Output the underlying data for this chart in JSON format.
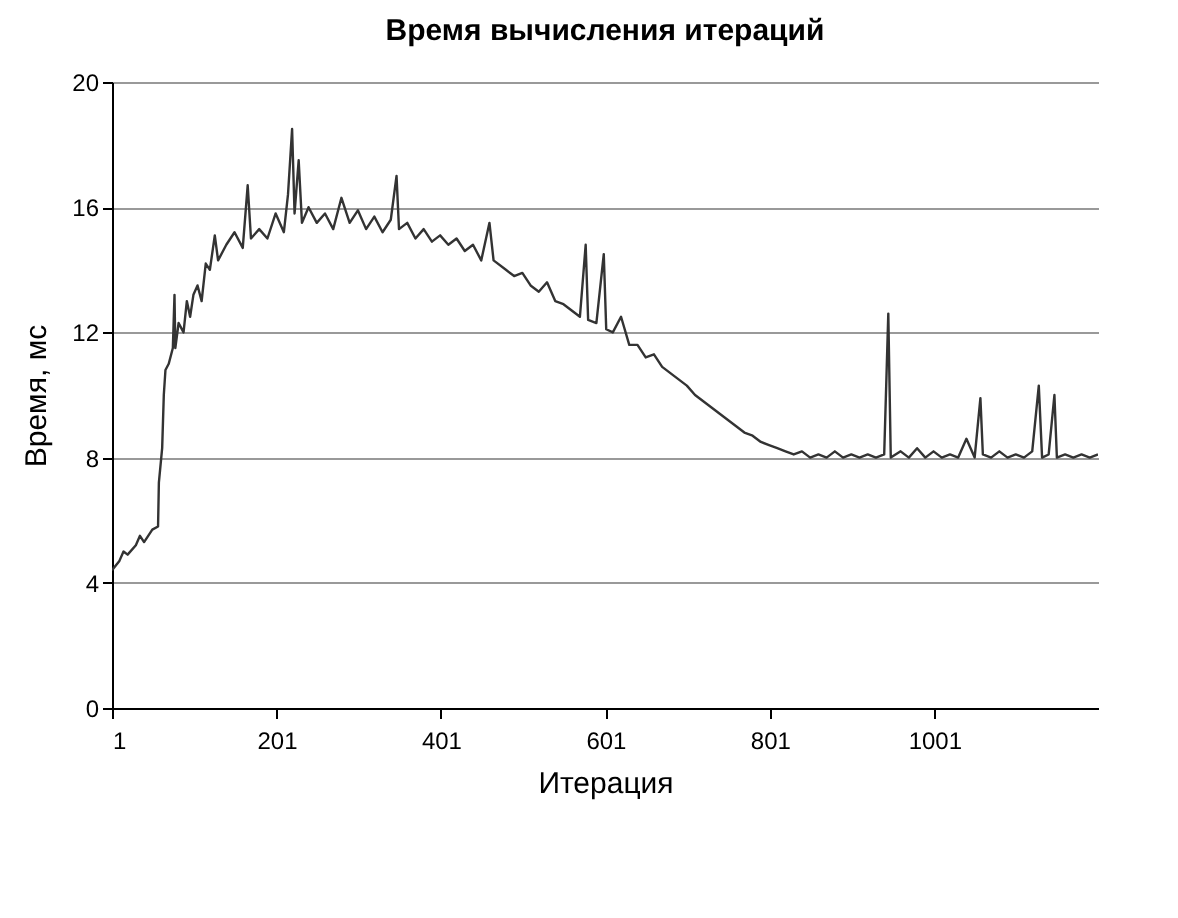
{
  "chart_data": {
    "type": "line",
    "title": "Время вычисления итераций",
    "xlabel": "Итерация",
    "ylabel": "Время, мс",
    "xlim": [
      1,
      1200
    ],
    "xticks": [
      1,
      201,
      401,
      601,
      801,
      1001
    ],
    "ylim": [
      0,
      20
    ],
    "yticks": [
      0,
      4,
      8,
      12,
      16,
      20
    ],
    "grid": "y",
    "marker": "none",
    "line_style": "solid",
    "x": [
      1,
      10,
      15,
      20,
      30,
      35,
      40,
      50,
      57,
      58,
      62,
      64,
      66,
      70,
      75,
      77,
      78,
      82,
      88,
      92,
      96,
      100,
      105,
      110,
      115,
      120,
      126,
      130,
      140,
      150,
      160,
      166,
      170,
      180,
      190,
      200,
      210,
      215,
      220,
      223,
      228,
      232,
      240,
      250,
      260,
      270,
      280,
      290,
      300,
      310,
      320,
      330,
      340,
      347,
      350,
      360,
      370,
      380,
      390,
      400,
      410,
      420,
      430,
      440,
      450,
      460,
      465,
      480,
      490,
      500,
      510,
      520,
      530,
      540,
      550,
      560,
      570,
      577,
      580,
      590,
      599,
      602,
      610,
      620,
      630,
      640,
      650,
      660,
      670,
      680,
      690,
      700,
      710,
      720,
      730,
      740,
      750,
      760,
      770,
      780,
      790,
      800,
      810,
      820,
      830,
      840,
      850,
      860,
      870,
      880,
      890,
      900,
      910,
      920,
      930,
      940,
      945,
      948,
      960,
      970,
      980,
      990,
      1000,
      1010,
      1020,
      1030,
      1040,
      1050,
      1057,
      1060,
      1070,
      1080,
      1090,
      1100,
      1110,
      1120,
      1128,
      1132,
      1140,
      1147,
      1150,
      1160,
      1170,
      1180,
      1190,
      1200
    ],
    "series": [
      {
        "color": "#333333",
        "values": [
          4.4,
          4.7,
          5.0,
          4.9,
          5.2,
          5.5,
          5.3,
          5.7,
          5.8,
          7.2,
          8.3,
          10.0,
          10.8,
          11.0,
          11.5,
          13.2,
          11.5,
          12.3,
          12.0,
          13.0,
          12.5,
          13.2,
          13.5,
          13.0,
          14.2,
          14.0,
          15.1,
          14.3,
          14.8,
          15.2,
          14.7,
          16.7,
          15.0,
          15.3,
          15.0,
          15.8,
          15.2,
          16.4,
          18.5,
          15.8,
          17.5,
          15.5,
          16.0,
          15.5,
          15.8,
          15.3,
          16.3,
          15.5,
          15.9,
          15.3,
          15.7,
          15.2,
          15.6,
          17.0,
          15.3,
          15.5,
          15.0,
          15.3,
          14.9,
          15.1,
          14.8,
          15.0,
          14.6,
          14.8,
          14.3,
          15.5,
          14.3,
          14.0,
          13.8,
          13.9,
          13.5,
          13.3,
          13.6,
          13.0,
          12.9,
          12.7,
          12.5,
          14.8,
          12.4,
          12.3,
          14.5,
          12.1,
          12.0,
          12.5,
          11.6,
          11.6,
          11.2,
          11.3,
          10.9,
          10.7,
          10.5,
          10.3,
          10.0,
          9.8,
          9.6,
          9.4,
          9.2,
          9.0,
          8.8,
          8.7,
          8.5,
          8.4,
          8.3,
          8.2,
          8.1,
          8.2,
          8.0,
          8.1,
          8.0,
          8.2,
          8.0,
          8.1,
          8.0,
          8.1,
          8.0,
          8.1,
          12.6,
          8.0,
          8.2,
          8.0,
          8.3,
          8.0,
          8.2,
          8.0,
          8.1,
          8.0,
          8.6,
          8.0,
          9.9,
          8.1,
          8.0,
          8.2,
          8.0,
          8.1,
          8.0,
          8.2,
          10.3,
          8.0,
          8.1,
          10.0,
          8.0,
          8.1,
          8.0,
          8.1,
          8.0,
          8.1
        ]
      }
    ]
  }
}
